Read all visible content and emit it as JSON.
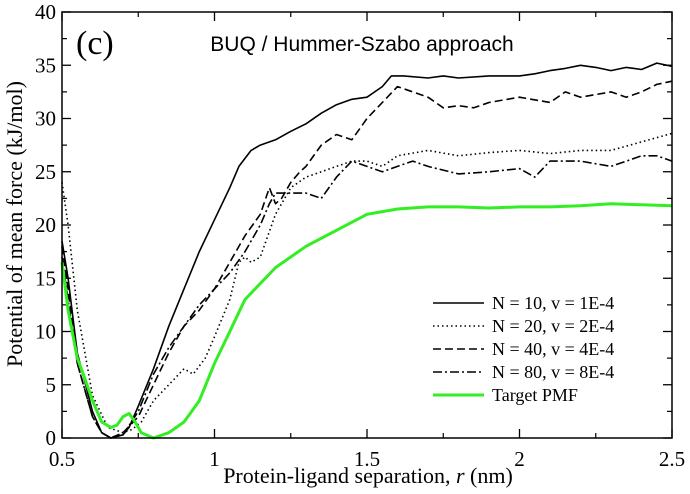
{
  "chart_data": {
    "type": "line",
    "panel_label": "(c)",
    "title": "BUQ / Hummer-Szabo approach",
    "xlabel_prefix": "Protein-ligand separation, ",
    "xlabel_var": "r",
    "xlabel_suffix": " (nm)",
    "ylabel": "Potential of mean force (kJ/mol)",
    "xlim": [
      0.5,
      2.5
    ],
    "ylim": [
      0,
      40
    ],
    "xticks": [
      0.5,
      1,
      1.5,
      2,
      2.5
    ],
    "xtick_labels": [
      "0.5",
      "1",
      "1.5",
      "2",
      "2.5"
    ],
    "yticks": [
      0,
      5,
      10,
      15,
      20,
      25,
      30,
      35,
      40
    ],
    "ytick_labels": [
      "0",
      "5",
      "10",
      "15",
      "20",
      "25",
      "30",
      "35",
      "40"
    ],
    "legend_position": "bottom-right",
    "series": [
      {
        "name": "N = 10, v = 1E-4",
        "color": "#000000",
        "style": "solid",
        "x": [
          0.5,
          0.52,
          0.55,
          0.6,
          0.63,
          0.66,
          0.7,
          0.72,
          0.75,
          0.8,
          0.85,
          0.9,
          0.95,
          1.0,
          1.05,
          1.08,
          1.12,
          1.15,
          1.2,
          1.25,
          1.3,
          1.35,
          1.4,
          1.45,
          1.5,
          1.55,
          1.58,
          1.62,
          1.7,
          1.75,
          1.8,
          1.9,
          2.0,
          2.05,
          2.1,
          2.15,
          2.2,
          2.25,
          2.3,
          2.35,
          2.4,
          2.45,
          2.5
        ],
        "y": [
          18.5,
          15.0,
          8.0,
          2.5,
          0.5,
          0.0,
          0.3,
          1.0,
          3.0,
          6.5,
          10.5,
          14.0,
          17.5,
          20.5,
          23.5,
          25.5,
          27.0,
          27.5,
          28.0,
          28.8,
          29.5,
          30.5,
          31.3,
          31.8,
          32.0,
          33.0,
          34.0,
          34.0,
          33.8,
          34.0,
          33.8,
          34.0,
          34.0,
          34.2,
          34.5,
          34.7,
          35.0,
          34.8,
          34.5,
          34.8,
          34.6,
          35.2,
          34.9
        ]
      },
      {
        "name": "N = 20, v = 2E-4",
        "color": "#000000",
        "style": "dotted",
        "x": [
          0.5,
          0.52,
          0.55,
          0.6,
          0.65,
          0.7,
          0.73,
          0.76,
          0.8,
          0.85,
          0.9,
          0.93,
          0.97,
          1.0,
          1.05,
          1.08,
          1.1,
          1.12,
          1.15,
          1.2,
          1.25,
          1.3,
          1.35,
          1.4,
          1.45,
          1.5,
          1.55,
          1.6,
          1.7,
          1.8,
          1.9,
          2.0,
          2.1,
          2.2,
          2.3,
          2.4,
          2.5
        ],
        "y": [
          24.0,
          20.0,
          12.0,
          4.0,
          1.0,
          0.5,
          0.8,
          1.5,
          3.5,
          5.0,
          6.5,
          6.0,
          7.5,
          9.5,
          13.0,
          16.5,
          17.0,
          16.5,
          17.0,
          21.0,
          23.5,
          24.5,
          25.0,
          25.5,
          26.0,
          26.0,
          25.5,
          26.5,
          27.0,
          26.5,
          26.8,
          27.0,
          26.7,
          27.0,
          27.0,
          27.8,
          28.6
        ]
      },
      {
        "name": "N = 40, v = 4E-4",
        "color": "#000000",
        "style": "dashed",
        "x": [
          0.5,
          0.52,
          0.55,
          0.6,
          0.63,
          0.66,
          0.7,
          0.75,
          0.8,
          0.85,
          0.9,
          0.95,
          1.0,
          1.05,
          1.1,
          1.15,
          1.18,
          1.2,
          1.22,
          1.25,
          1.28,
          1.3,
          1.35,
          1.4,
          1.45,
          1.5,
          1.55,
          1.6,
          1.65,
          1.7,
          1.75,
          1.8,
          1.85,
          1.9,
          2.0,
          2.1,
          2.15,
          2.2,
          2.3,
          2.35,
          2.4,
          2.45,
          2.5
        ],
        "y": [
          18.0,
          14.0,
          7.0,
          2.0,
          0.5,
          0.0,
          0.5,
          2.0,
          5.0,
          8.0,
          10.5,
          12.0,
          14.0,
          16.5,
          19.0,
          21.0,
          23.5,
          22.0,
          22.5,
          24.0,
          25.0,
          25.5,
          27.5,
          28.5,
          28.0,
          30.0,
          31.5,
          33.0,
          32.5,
          32.0,
          31.0,
          31.2,
          31.0,
          31.5,
          32.0,
          31.5,
          32.5,
          32.0,
          32.5,
          32.0,
          32.5,
          33.2,
          33.5
        ]
      },
      {
        "name": "N = 80, v = 8E-4",
        "color": "#000000",
        "style": "dashdot",
        "x": [
          0.5,
          0.52,
          0.55,
          0.6,
          0.63,
          0.66,
          0.7,
          0.75,
          0.8,
          0.85,
          0.9,
          0.95,
          1.0,
          1.05,
          1.1,
          1.15,
          1.18,
          1.2,
          1.25,
          1.3,
          1.35,
          1.4,
          1.45,
          1.5,
          1.55,
          1.6,
          1.65,
          1.7,
          1.8,
          1.9,
          2.0,
          2.05,
          2.1,
          2.2,
          2.3,
          2.35,
          2.4,
          2.45,
          2.5
        ],
        "y": [
          17.0,
          13.0,
          7.0,
          2.0,
          0.5,
          0.0,
          0.3,
          2.5,
          6.0,
          8.5,
          10.5,
          12.5,
          14.0,
          15.5,
          17.5,
          20.0,
          22.0,
          23.0,
          23.0,
          23.0,
          22.5,
          24.5,
          26.0,
          25.5,
          25.0,
          25.5,
          26.0,
          25.5,
          24.8,
          25.0,
          25.3,
          24.5,
          26.0,
          26.0,
          25.5,
          26.0,
          26.5,
          26.5,
          26.0
        ]
      },
      {
        "name": "Target PMF",
        "color": "#33ee22",
        "style": "solid",
        "x": [
          0.5,
          0.52,
          0.55,
          0.57,
          0.6,
          0.63,
          0.66,
          0.68,
          0.7,
          0.72,
          0.74,
          0.76,
          0.8,
          0.85,
          0.9,
          0.95,
          1.0,
          1.05,
          1.1,
          1.2,
          1.3,
          1.4,
          1.5,
          1.6,
          1.7,
          1.8,
          1.9,
          2.0,
          2.1,
          2.2,
          2.3,
          2.4,
          2.5
        ],
        "y": [
          16.5,
          12.0,
          7.5,
          6.0,
          3.5,
          1.5,
          1.0,
          1.2,
          2.0,
          2.3,
          1.5,
          0.5,
          0.0,
          0.5,
          1.5,
          3.5,
          7.0,
          10.0,
          13.0,
          16.0,
          18.0,
          19.5,
          21.0,
          21.5,
          21.7,
          21.7,
          21.6,
          21.7,
          21.7,
          21.8,
          22.0,
          21.9,
          21.8
        ]
      }
    ]
  }
}
